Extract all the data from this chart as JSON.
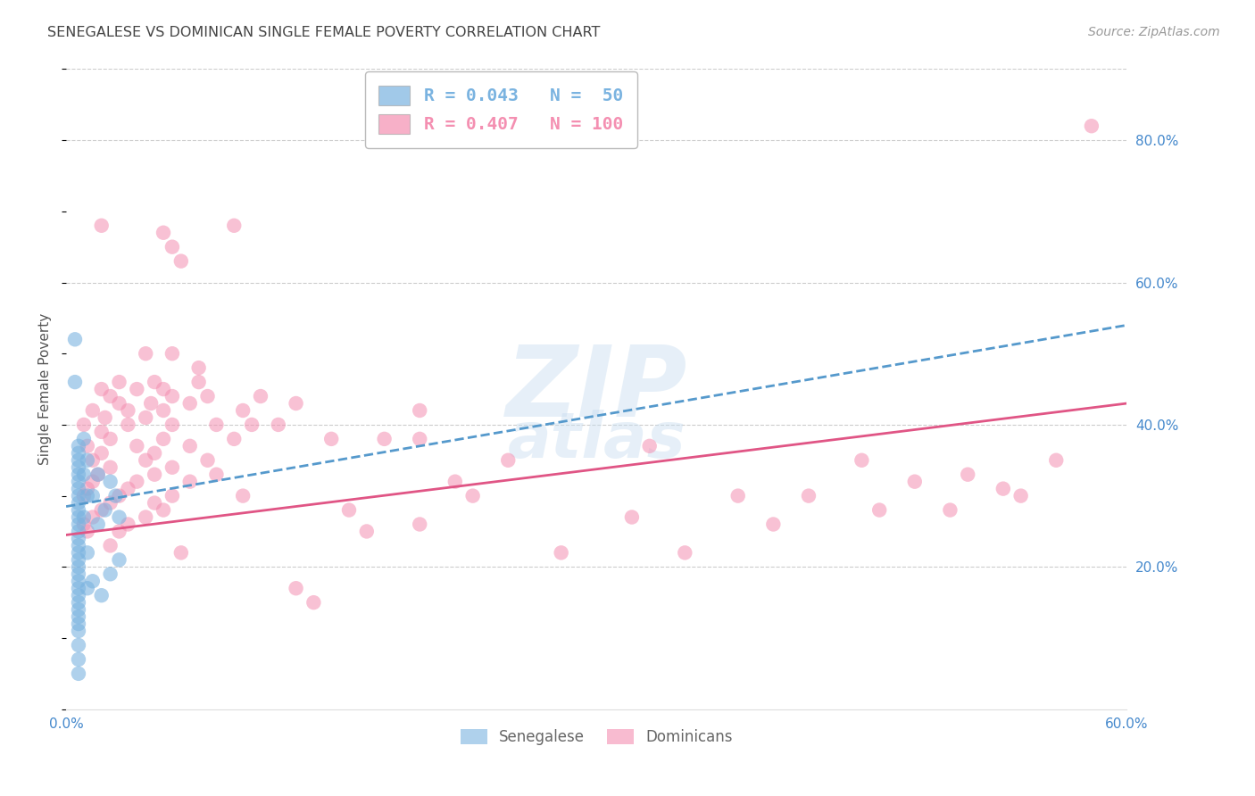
{
  "title": "SENEGALESE VS DOMINICAN SINGLE FEMALE POVERTY CORRELATION CHART",
  "source": "Source: ZipAtlas.com",
  "ylabel": "Single Female Poverty",
  "xlim": [
    0.0,
    0.6
  ],
  "ylim": [
    0.0,
    0.9
  ],
  "senegalese_color": "#7ab3e0",
  "dominican_color": "#f48fb1",
  "senegalese_R": 0.043,
  "senegalese_N": 50,
  "dominican_R": 0.407,
  "dominican_N": 100,
  "senegalese_points": [
    [
      0.005,
      0.52
    ],
    [
      0.005,
      0.46
    ],
    [
      0.007,
      0.37
    ],
    [
      0.007,
      0.36
    ],
    [
      0.007,
      0.35
    ],
    [
      0.007,
      0.34
    ],
    [
      0.007,
      0.33
    ],
    [
      0.007,
      0.32
    ],
    [
      0.007,
      0.31
    ],
    [
      0.007,
      0.3
    ],
    [
      0.007,
      0.29
    ],
    [
      0.007,
      0.28
    ],
    [
      0.007,
      0.27
    ],
    [
      0.007,
      0.26
    ],
    [
      0.007,
      0.25
    ],
    [
      0.007,
      0.24
    ],
    [
      0.007,
      0.23
    ],
    [
      0.007,
      0.22
    ],
    [
      0.007,
      0.21
    ],
    [
      0.007,
      0.2
    ],
    [
      0.007,
      0.19
    ],
    [
      0.007,
      0.18
    ],
    [
      0.007,
      0.17
    ],
    [
      0.007,
      0.16
    ],
    [
      0.007,
      0.15
    ],
    [
      0.007,
      0.14
    ],
    [
      0.007,
      0.13
    ],
    [
      0.007,
      0.12
    ],
    [
      0.007,
      0.11
    ],
    [
      0.007,
      0.09
    ],
    [
      0.007,
      0.07
    ],
    [
      0.007,
      0.05
    ],
    [
      0.012,
      0.35
    ],
    [
      0.012,
      0.3
    ],
    [
      0.012,
      0.22
    ],
    [
      0.012,
      0.17
    ],
    [
      0.015,
      0.3
    ],
    [
      0.015,
      0.18
    ],
    [
      0.018,
      0.33
    ],
    [
      0.018,
      0.26
    ],
    [
      0.022,
      0.28
    ],
    [
      0.025,
      0.32
    ],
    [
      0.028,
      0.3
    ],
    [
      0.03,
      0.27
    ],
    [
      0.02,
      0.16
    ],
    [
      0.025,
      0.19
    ],
    [
      0.01,
      0.38
    ],
    [
      0.01,
      0.33
    ],
    [
      0.01,
      0.27
    ],
    [
      0.03,
      0.21
    ]
  ],
  "dominican_points": [
    [
      0.02,
      0.68
    ],
    [
      0.095,
      0.68
    ],
    [
      0.055,
      0.67
    ],
    [
      0.06,
      0.65
    ],
    [
      0.065,
      0.63
    ],
    [
      0.045,
      0.5
    ],
    [
      0.06,
      0.5
    ],
    [
      0.075,
      0.48
    ],
    [
      0.03,
      0.46
    ],
    [
      0.05,
      0.46
    ],
    [
      0.075,
      0.46
    ],
    [
      0.02,
      0.45
    ],
    [
      0.04,
      0.45
    ],
    [
      0.055,
      0.45
    ],
    [
      0.025,
      0.44
    ],
    [
      0.06,
      0.44
    ],
    [
      0.08,
      0.44
    ],
    [
      0.03,
      0.43
    ],
    [
      0.048,
      0.43
    ],
    [
      0.07,
      0.43
    ],
    [
      0.015,
      0.42
    ],
    [
      0.035,
      0.42
    ],
    [
      0.055,
      0.42
    ],
    [
      0.1,
      0.42
    ],
    [
      0.022,
      0.41
    ],
    [
      0.045,
      0.41
    ],
    [
      0.01,
      0.4
    ],
    [
      0.035,
      0.4
    ],
    [
      0.06,
      0.4
    ],
    [
      0.085,
      0.4
    ],
    [
      0.105,
      0.4
    ],
    [
      0.12,
      0.4
    ],
    [
      0.2,
      0.42
    ],
    [
      0.02,
      0.39
    ],
    [
      0.025,
      0.38
    ],
    [
      0.055,
      0.38
    ],
    [
      0.095,
      0.38
    ],
    [
      0.2,
      0.38
    ],
    [
      0.012,
      0.37
    ],
    [
      0.04,
      0.37
    ],
    [
      0.07,
      0.37
    ],
    [
      0.02,
      0.36
    ],
    [
      0.05,
      0.36
    ],
    [
      0.015,
      0.35
    ],
    [
      0.045,
      0.35
    ],
    [
      0.08,
      0.35
    ],
    [
      0.025,
      0.34
    ],
    [
      0.06,
      0.34
    ],
    [
      0.018,
      0.33
    ],
    [
      0.05,
      0.33
    ],
    [
      0.085,
      0.33
    ],
    [
      0.015,
      0.32
    ],
    [
      0.04,
      0.32
    ],
    [
      0.07,
      0.32
    ],
    [
      0.012,
      0.31
    ],
    [
      0.035,
      0.31
    ],
    [
      0.01,
      0.3
    ],
    [
      0.03,
      0.3
    ],
    [
      0.06,
      0.3
    ],
    [
      0.1,
      0.3
    ],
    [
      0.025,
      0.29
    ],
    [
      0.05,
      0.29
    ],
    [
      0.02,
      0.28
    ],
    [
      0.055,
      0.28
    ],
    [
      0.015,
      0.27
    ],
    [
      0.045,
      0.27
    ],
    [
      0.01,
      0.26
    ],
    [
      0.035,
      0.26
    ],
    [
      0.012,
      0.25
    ],
    [
      0.03,
      0.25
    ],
    [
      0.025,
      0.23
    ],
    [
      0.065,
      0.22
    ],
    [
      0.13,
      0.17
    ],
    [
      0.14,
      0.15
    ],
    [
      0.28,
      0.22
    ],
    [
      0.32,
      0.27
    ],
    [
      0.38,
      0.3
    ],
    [
      0.42,
      0.3
    ],
    [
      0.45,
      0.35
    ],
    [
      0.48,
      0.32
    ],
    [
      0.51,
      0.33
    ],
    [
      0.54,
      0.3
    ],
    [
      0.33,
      0.37
    ],
    [
      0.25,
      0.35
    ],
    [
      0.22,
      0.32
    ],
    [
      0.17,
      0.25
    ],
    [
      0.16,
      0.28
    ],
    [
      0.15,
      0.38
    ],
    [
      0.18,
      0.38
    ],
    [
      0.2,
      0.26
    ],
    [
      0.23,
      0.3
    ],
    [
      0.11,
      0.44
    ],
    [
      0.13,
      0.43
    ],
    [
      0.58,
      0.82
    ],
    [
      0.56,
      0.35
    ],
    [
      0.5,
      0.28
    ],
    [
      0.35,
      0.22
    ],
    [
      0.4,
      0.26
    ],
    [
      0.46,
      0.28
    ],
    [
      0.53,
      0.31
    ]
  ],
  "senegalese_trend": [
    0.0,
    0.285,
    0.6,
    0.54
  ],
  "dominican_trend": [
    0.0,
    0.245,
    0.6,
    0.43
  ],
  "background_color": "#ffffff",
  "grid_color": "#cccccc",
  "tick_label_color": "#4488cc",
  "title_color": "#444444",
  "axis_label_color": "#555555"
}
